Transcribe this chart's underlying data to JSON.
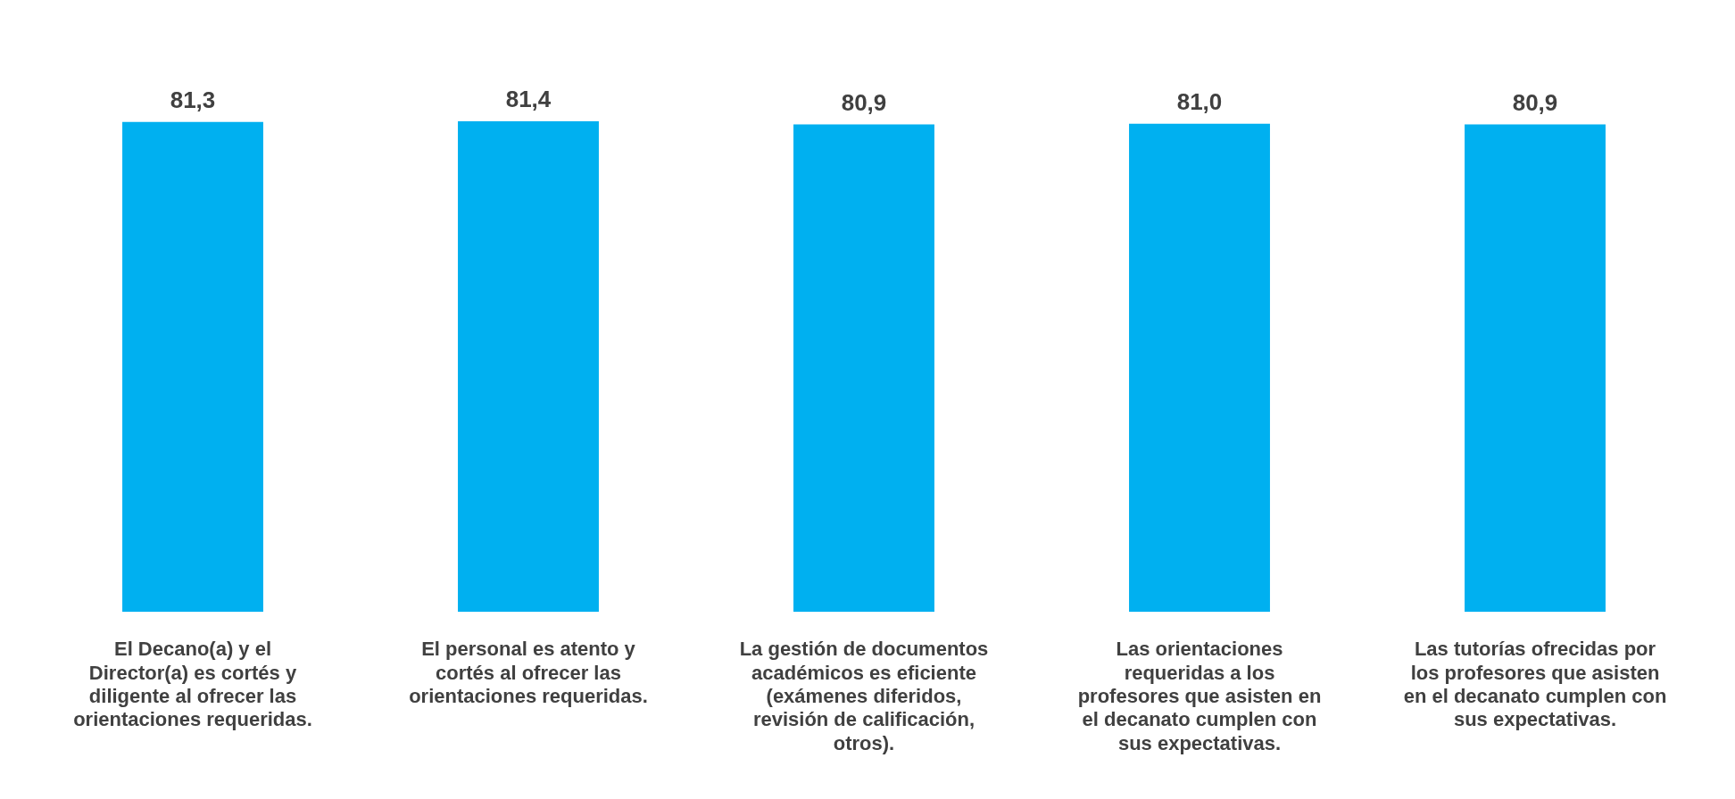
{
  "chart_data": {
    "type": "bar",
    "categories": [
      "El Decano(a) y el Director(a) es cortés y diligente al ofrecer las orientaciones requeridas.",
      "El personal es atento y cortés al ofrecer las orientaciones requeridas.",
      "La gestión de documentos académicos es eficiente (exámenes diferidos, revisión de calificación, otros).",
      "Las orientaciones requeridas a los profesores que asisten en el decanato cumplen con sus expectativas.",
      "Las tutorías ofrecidas por los profesores que asisten en el decanato cumplen con sus expectativas."
    ],
    "values": [
      81.3,
      81.4,
      80.9,
      81.0,
      80.9
    ],
    "value_labels": [
      "81,3",
      "81,4",
      "80,9",
      "81,0",
      "80,9"
    ],
    "color": "#00b0f0",
    "grid": false,
    "legend": false,
    "tick_labels": "x"
  }
}
